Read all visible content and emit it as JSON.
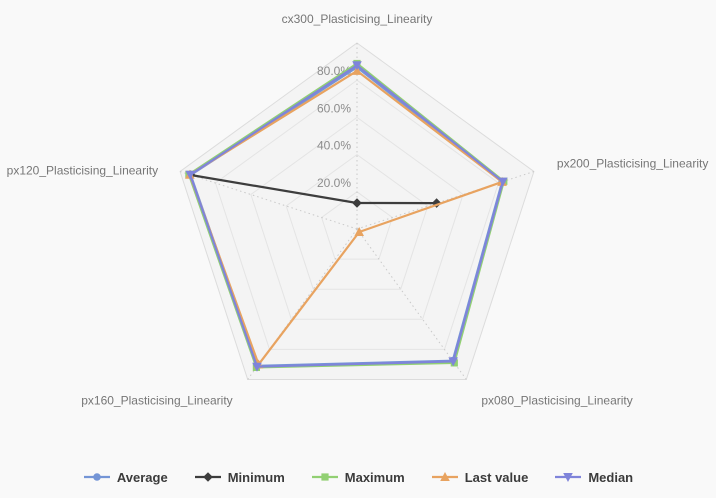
{
  "chart_data": {
    "type": "radar",
    "categories": [
      "cx300_Plasticising_Linearity",
      "px200_Plasticising_Linearity",
      "px080_Plasticising_Linearity",
      "px160_Plasticising_Linearity",
      "px120_Plasticising_Linearity"
    ],
    "axis_max": 100,
    "ticks": [
      {
        "value": 20,
        "label": "20.0%"
      },
      {
        "value": 40,
        "label": "40.0%"
      },
      {
        "value": 60,
        "label": "60.0%"
      },
      {
        "value": 80,
        "label": "80.0%"
      }
    ],
    "grid": "pentagon-rings",
    "legend_position": "bottom-center",
    "series": [
      {
        "name": "Average",
        "color": "#7495d6",
        "marker": "circle",
        "values": [
          87,
          82,
          87.5,
          91,
          94
        ]
      },
      {
        "name": "Minimum",
        "color": "#3d3d3d",
        "marker": "diamond",
        "values": [
          14,
          45,
          null,
          null,
          94
        ]
      },
      {
        "name": "Maximum",
        "color": "#92d073",
        "marker": "square",
        "values": [
          89,
          83,
          89,
          92,
          95
        ]
      },
      {
        "name": "Last value",
        "color": "#e8a360",
        "marker": "triangle-up",
        "values": [
          85,
          82,
          2,
          90,
          94.5
        ]
      },
      {
        "name": "Median",
        "color": "#7f84da",
        "marker": "triangle-down",
        "values": [
          88,
          82.5,
          88,
          91.5,
          94.3
        ]
      }
    ]
  },
  "colors": {
    "background": "#f9f9f9",
    "plot_fill": "#f4f4f4",
    "outer_ring_line": "#dcdcdc",
    "grid_line": "#e4e4e4",
    "axis_dotted": "#c9c9c9",
    "category_label": "#767676",
    "tick_label": "#8c8c8c",
    "legend_text": "#3b3b3b"
  }
}
